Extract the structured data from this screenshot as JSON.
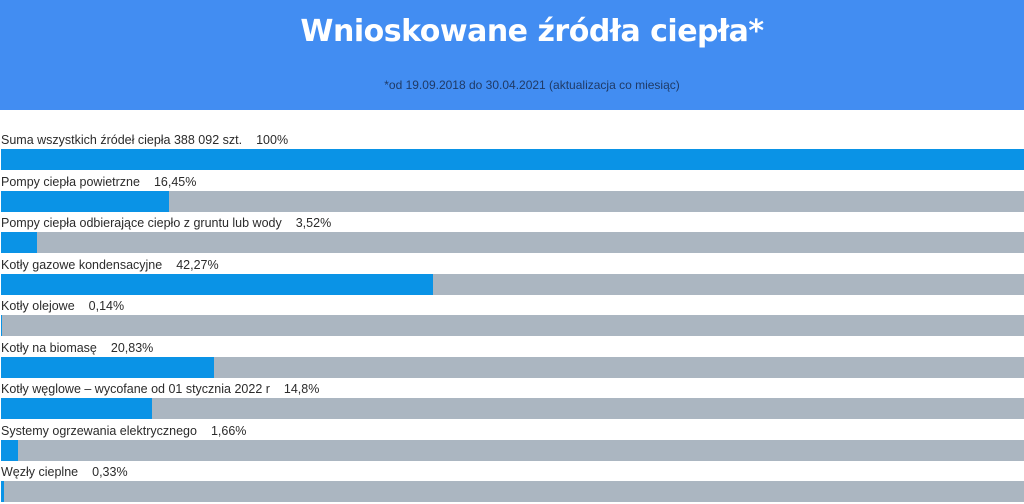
{
  "chart_data": {
    "type": "bar",
    "orientation": "horizontal",
    "title": "Wnioskowane źródła ciepła*",
    "subtitle": "*od 19.09.2018 do 30.04.2021 (aktualizacja co miesiąc)",
    "xlim": [
      0,
      100
    ],
    "categories": [
      "Suma wszystkich źródeł ciepła 388 092 szt.",
      "Pompy ciepła powietrzne",
      "Pompy ciepła odbierające ciepło z gruntu lub wody",
      "Kotły gazowe kondensacyjne",
      "Kotły olejowe",
      "Kotły na biomasę",
      "Kotły węglowe – wycofane od 01 stycznia 2022 r",
      "Systemy ogrzewania elektrycznego",
      "Węzły cieplne"
    ],
    "values": [
      100,
      16.45,
      3.52,
      42.27,
      0.14,
      20.83,
      14.8,
      1.66,
      0.33
    ],
    "value_labels": [
      "100%",
      "16,45%",
      "3,52%",
      "42,27%",
      "0,14%",
      "20,83%",
      "14,8%",
      "1,66%",
      "0,33%"
    ],
    "colors": {
      "header": "#428df2",
      "fill": "#0a93e6",
      "track": "#abb6c1"
    }
  }
}
